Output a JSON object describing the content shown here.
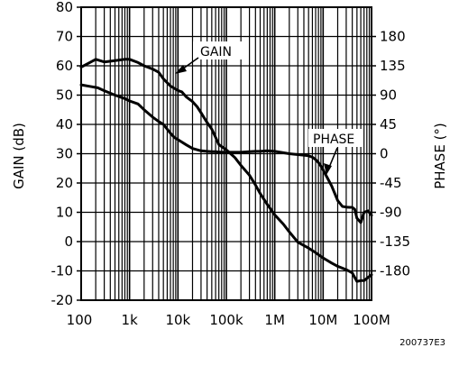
{
  "chart_data": {
    "type": "line",
    "x_scale": "log",
    "grid": true,
    "xlim": [
      100,
      100000000
    ],
    "ylim_left": [
      -20,
      80
    ],
    "ylim_right": [
      -225,
      225
    ],
    "x_ticks": [
      {
        "value": 100,
        "label": "100"
      },
      {
        "value": 1000,
        "label": "1k"
      },
      {
        "value": 10000,
        "label": "10k"
      },
      {
        "value": 100000,
        "label": "100k"
      },
      {
        "value": 1000000,
        "label": "1M"
      },
      {
        "value": 10000000,
        "label": "10M"
      },
      {
        "value": 100000000,
        "label": "100M"
      }
    ],
    "left_ticks": [
      {
        "value": 80,
        "label": "80"
      },
      {
        "value": 70,
        "label": "70"
      },
      {
        "value": 60,
        "label": "60"
      },
      {
        "value": 50,
        "label": "50"
      },
      {
        "value": 40,
        "label": "40"
      },
      {
        "value": 30,
        "label": "30"
      },
      {
        "value": 20,
        "label": "20"
      },
      {
        "value": 10,
        "label": "10"
      },
      {
        "value": 0,
        "label": "0"
      },
      {
        "value": -10,
        "label": "-10"
      },
      {
        "value": -20,
        "label": "-20"
      }
    ],
    "right_ticks": [
      {
        "value": 180,
        "label": "180"
      },
      {
        "value": 135,
        "label": "135"
      },
      {
        "value": 90,
        "label": "90"
      },
      {
        "value": 45,
        "label": "45"
      },
      {
        "value": 0,
        "label": "0"
      },
      {
        "value": -45,
        "label": "-45"
      },
      {
        "value": -90,
        "label": "-90"
      },
      {
        "value": -135,
        "label": "-135"
      },
      {
        "value": -180,
        "label": "-180"
      }
    ],
    "ylabel_left": "GAIN (dB)",
    "ylabel_right": "PHASE (°)",
    "series": [
      {
        "name": "GAIN",
        "axis": "left",
        "x": [
          100,
          150,
          220,
          300,
          500,
          800,
          1000,
          1500,
          2000,
          3000,
          4000,
          5000,
          7000,
          8500,
          10000,
          15000,
          20000,
          30000,
          40000,
          50000,
          60000,
          70000,
          80000,
          90000,
          100000,
          200000,
          300000,
          400000,
          500000,
          700000,
          1000000,
          2000000,
          3000000,
          4000000,
          5000000,
          6000000,
          7000000,
          8000000,
          9000000,
          10000000,
          12000000,
          15000000,
          20000000,
          25000000,
          30000000,
          35000000,
          40000000,
          45000000,
          50000000,
          60000000,
          70000000,
          85000000,
          100000000
        ],
        "values": [
          53.5,
          53,
          52.5,
          51.5,
          50,
          48.8,
          48,
          47,
          45,
          42.5,
          41,
          40,
          37,
          35.5,
          34.8,
          33,
          31.8,
          31,
          30.8,
          30.7,
          30.7,
          30.6,
          30.5,
          30.5,
          30.5,
          30.5,
          30.7,
          30.8,
          30.8,
          31,
          30.8,
          30,
          29.7,
          29.5,
          29.3,
          28.8,
          28,
          27,
          25.8,
          24.5,
          22,
          19,
          14,
          12,
          11.8,
          11.7,
          11.7,
          11,
          8,
          6.5,
          10,
          10.5,
          9
        ]
      },
      {
        "name": "PHASE",
        "axis": "right",
        "x": [
          100,
          150,
          200,
          300,
          500,
          800,
          1000,
          1500,
          2000,
          3000,
          4000,
          5000,
          7000,
          10000,
          12000,
          15000,
          20000,
          25000,
          30000,
          40000,
          50000,
          60000,
          70000,
          100000,
          150000,
          200000,
          300000,
          400000,
          500000,
          700000,
          1000000,
          1500000,
          2000000,
          3000000,
          5000000,
          7000000,
          10000000,
          15000000,
          20000000,
          30000000,
          40000000,
          50000000,
          60000000,
          70000000,
          85000000,
          100000000
        ],
        "values": [
          133,
          140,
          145,
          141,
          143,
          145,
          145,
          140,
          135,
          130,
          125,
          115,
          104,
          97,
          95,
          87,
          80,
          72,
          63,
          48,
          38,
          25,
          14,
          6,
          -6,
          -18,
          -33,
          -48,
          -61,
          -78,
          -94,
          -108,
          -120,
          -136,
          -145,
          -152,
          -160,
          -168,
          -173,
          -178,
          -183,
          -196,
          -195,
          -195,
          -190,
          -186
        ]
      }
    ],
    "annotations": [
      {
        "text": "GAIN",
        "points_to": "GAIN"
      },
      {
        "text": "PHASE",
        "points_to": "PHASE"
      }
    ],
    "figure_code": "200737E3"
  }
}
